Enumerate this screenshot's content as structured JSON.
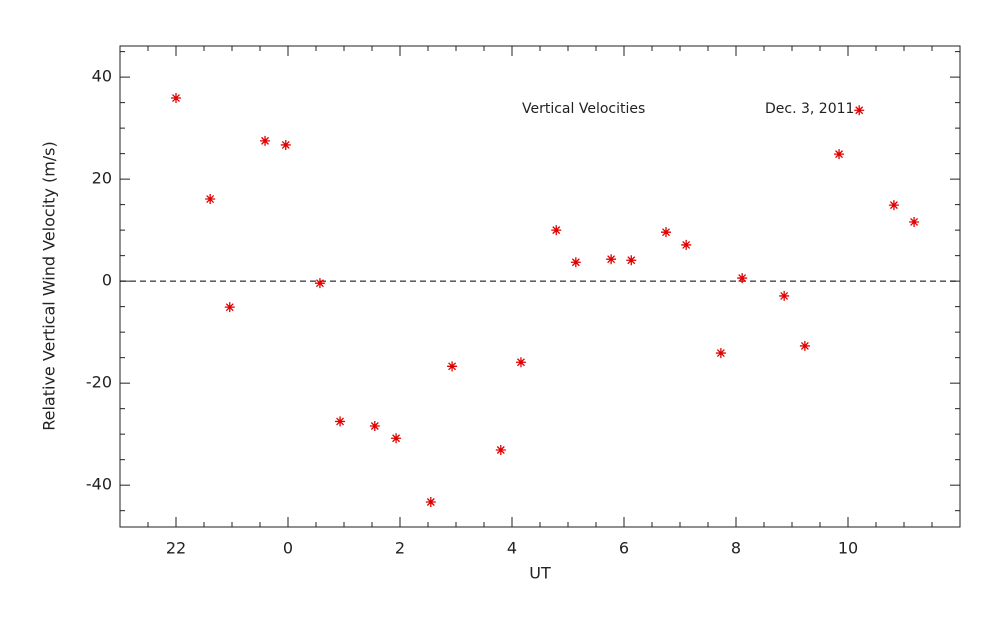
{
  "chart_data": {
    "type": "scatter",
    "xlabel": "UT",
    "ylabel": "Relative Vertical Wind Velocity (m/s)",
    "annotations": [
      "Vertical Velocities",
      "Dec. 3, 2011"
    ],
    "color": "#e00000",
    "hline": 0,
    "x": [
      -2.0,
      -1.39,
      -1.04,
      -0.41,
      -0.04,
      0.57,
      0.93,
      1.55,
      1.93,
      2.55,
      2.93,
      3.8,
      4.16,
      4.79,
      5.14,
      5.77,
      6.13,
      6.75,
      7.11,
      7.73,
      8.11,
      8.86,
      9.23,
      9.84,
      10.2,
      10.82,
      11.18
    ],
    "values": [
      35.9,
      16.1,
      -5.1,
      27.5,
      26.7,
      -0.4,
      -27.5,
      -28.4,
      -30.8,
      -43.3,
      -16.7,
      -33.1,
      -15.9,
      10.0,
      3.7,
      4.3,
      4.1,
      9.6,
      7.1,
      -14.1,
      0.6,
      -2.9,
      -12.7,
      24.9,
      33.5,
      14.9,
      11.6
    ],
    "xlim": [
      -3,
      12
    ],
    "xticks": [
      {
        "value": -2,
        "label": "22"
      },
      0,
      2,
      4,
      6,
      8,
      10
    ],
    "ylim": [
      -48.2,
      46.1
    ],
    "yticks": [
      -40,
      -20,
      0,
      20,
      40
    ]
  }
}
